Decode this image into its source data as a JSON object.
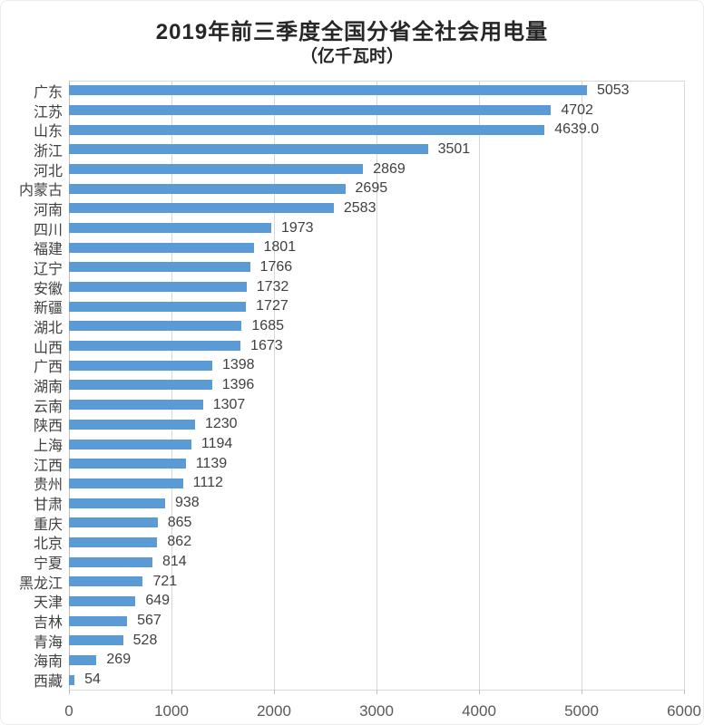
{
  "chart": {
    "title": "2019年前三季度全国分省全社会用电量",
    "subtitle": "（亿千瓦时）"
  },
  "chart_data": {
    "type": "bar",
    "orientation": "horizontal",
    "title": "2019年前三季度全国分省全社会用电量",
    "subtitle": "（亿千瓦时）",
    "unit": "亿千瓦时",
    "categories": [
      "广东",
      "江苏",
      "山东",
      "浙江",
      "河北",
      "内蒙古",
      "河南",
      "四川",
      "福建",
      "辽宁",
      "安徽",
      "新疆",
      "湖北",
      "山西",
      "广西",
      "湖南",
      "云南",
      "陕西",
      "上海",
      "江西",
      "贵州",
      "甘肃",
      "重庆",
      "北京",
      "宁夏",
      "黑龙江",
      "天津",
      "吉林",
      "青海",
      "海南",
      "西藏"
    ],
    "values": [
      5053,
      4702,
      4639,
      3501,
      2869,
      2695,
      2583,
      1973,
      1801,
      1766,
      1732,
      1727,
      1685,
      1673,
      1398,
      1396,
      1307,
      1230,
      1194,
      1139,
      1112,
      938,
      865,
      862,
      814,
      721,
      649,
      567,
      528,
      269,
      54
    ],
    "value_labels": [
      "5053",
      "4702",
      "4639.0",
      "3501",
      "2869",
      "2695",
      "2583",
      "1973",
      "1801",
      "1766",
      "1732",
      "1727",
      "1685",
      "1673",
      "1398",
      "1396",
      "1307",
      "1230",
      "1194",
      "1139",
      "1112",
      "938",
      "865",
      "862",
      "814",
      "721",
      "649",
      "567",
      "528",
      "269",
      "54"
    ],
    "xlabel": "",
    "ylabel": "",
    "xlim": [
      0,
      6000
    ],
    "x_ticks": [
      "0",
      "1000",
      "2000",
      "3000",
      "4000",
      "5000",
      "6000"
    ],
    "grid": true,
    "legend_position": "none"
  },
  "colors": {
    "bar": "#5b9bd5",
    "gridline": "#d9d9d9",
    "axis_line": "#bfbfbf",
    "title_text": "#262626",
    "label_text": "#404040",
    "tick_text": "#595959",
    "background": "#ffffff"
  }
}
